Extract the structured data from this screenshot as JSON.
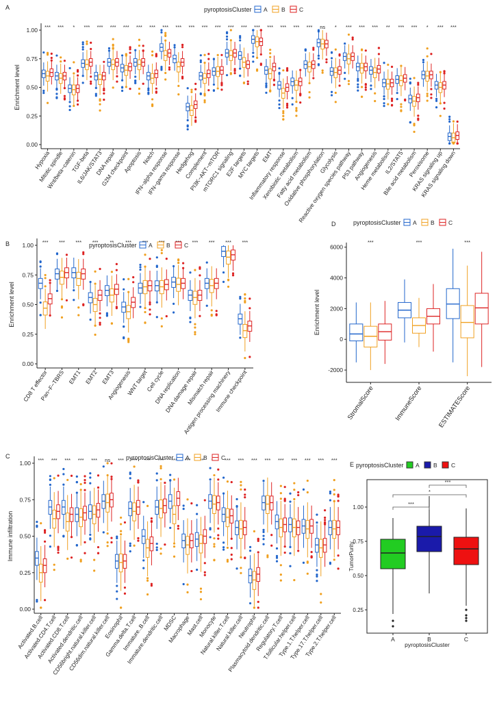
{
  "colors": {
    "A": "#2266cc",
    "B": "#f0a020",
    "C": "#dd2222",
    "E_A": "#22cc22",
    "E_B": "#1a1aaa",
    "E_C": "#ee1111"
  },
  "chart_data": [
    {
      "panel": "A",
      "type": "box",
      "title": "pyroptosisCluster",
      "ylabel": "Enrichment level",
      "legend": {
        "title": "pyroptosisCluster",
        "entries": [
          "A",
          "B",
          "C"
        ]
      },
      "yticks": [
        "0.00",
        "0.25",
        "0.50",
        "0.75",
        "1.00"
      ],
      "ylim": [
        0,
        1
      ],
      "categories": [
        "Hypoxia",
        "Mitotic spindle",
        "Wnt/beta−catenin",
        "TGF-beta",
        "IL6/JAK/STAT3",
        "DNA repair",
        "G2M checkpoint",
        "Apoptosis",
        "Notch",
        "IFN−alpha response",
        "IFN−gama response",
        "Hedgehog",
        "Complement",
        "PI3K−AKT−mTOR",
        "mTORC1 signaling",
        "E2F targets",
        "MYC targets",
        "EMT",
        "Inflammatory response",
        "Xenobiotic metabolism",
        "Fatty acid metabolism",
        "Oxidative phosphorylation",
        "Glycolysis",
        "Reactive oxygen species pathway",
        "P53 pathway",
        "Angiogenesis",
        "Heme metabolism",
        "IL2/STAT5",
        "Bile acid metabolism",
        "Peroxisome",
        "KRAS signaling up",
        "KRAS signaling down"
      ],
      "significance": [
        "***",
        "***",
        "*",
        "***",
        "***",
        "***",
        "***",
        "***",
        "***",
        "***",
        "***",
        "***",
        "***",
        "***",
        "***",
        "***",
        "***",
        "***",
        "***",
        "***",
        "***",
        "ns",
        "*",
        "***",
        "***",
        "***",
        "**",
        "***",
        "***",
        "*",
        "***",
        "***"
      ],
      "medians": [
        [
          0.62,
          0.6,
          0.63
        ],
        [
          0.6,
          0.58,
          0.6
        ],
        [
          0.49,
          0.48,
          0.49
        ],
        [
          0.71,
          0.7,
          0.72
        ],
        [
          0.6,
          0.57,
          0.6
        ],
        [
          0.72,
          0.7,
          0.72
        ],
        [
          0.67,
          0.65,
          0.68
        ],
        [
          0.72,
          0.7,
          0.72
        ],
        [
          0.6,
          0.58,
          0.62
        ],
        [
          0.85,
          0.78,
          0.8
        ],
        [
          0.75,
          0.68,
          0.72
        ],
        [
          0.33,
          0.3,
          0.35
        ],
        [
          0.6,
          0.58,
          0.62
        ],
        [
          0.64,
          0.64,
          0.65
        ],
        [
          0.8,
          0.78,
          0.8
        ],
        [
          0.78,
          0.72,
          0.7
        ],
        [
          0.92,
          0.9,
          0.9
        ],
        [
          0.65,
          0.62,
          0.68
        ],
        [
          0.52,
          0.45,
          0.5
        ],
        [
          0.55,
          0.52,
          0.55
        ],
        [
          0.7,
          0.68,
          0.7
        ],
        [
          0.89,
          0.88,
          0.88
        ],
        [
          0.64,
          0.63,
          0.65
        ],
        [
          0.77,
          0.75,
          0.77
        ],
        [
          0.68,
          0.67,
          0.68
        ],
        [
          0.65,
          0.63,
          0.66
        ],
        [
          0.54,
          0.53,
          0.54
        ],
        [
          0.57,
          0.56,
          0.58
        ],
        [
          0.4,
          0.38,
          0.41
        ],
        [
          0.61,
          0.6,
          0.61
        ],
        [
          0.52,
          0.5,
          0.52
        ],
        [
          0.07,
          0.06,
          0.08
        ]
      ]
    },
    {
      "panel": "B",
      "type": "box",
      "ylabel": "Enrichment level",
      "legend": {
        "title": "pyroptosisCluster",
        "entries": [
          "A",
          "B",
          "C"
        ]
      },
      "yticks": [
        "0.00",
        "0.25",
        "0.50",
        "0.75",
        "1.00"
      ],
      "ylim": [
        0,
        1
      ],
      "categories": [
        "CD8 T effector",
        "Pan−F−TBRS",
        "EMT1",
        "EMT2",
        "EMT3",
        "Angiogenesis",
        "WNT target",
        "Cell cycle",
        "DNA replication",
        "DNA damage repair",
        "Mismatch repair",
        "Antigen processing machinery",
        "Immune checkpoint"
      ],
      "significance": [
        "***",
        "***",
        "***",
        "***",
        "**",
        "***",
        "***",
        "***",
        "***",
        "***",
        "***",
        "***",
        "***"
      ],
      "medians": [
        [
          0.68,
          0.47,
          0.55
        ],
        [
          0.76,
          0.73,
          0.77
        ],
        [
          0.77,
          0.72,
          0.76
        ],
        [
          0.56,
          0.5,
          0.58
        ],
        [
          0.62,
          0.58,
          0.63
        ],
        [
          0.48,
          0.44,
          0.52
        ],
        [
          0.64,
          0.65,
          0.66
        ],
        [
          0.66,
          0.65,
          0.67
        ],
        [
          0.69,
          0.67,
          0.68
        ],
        [
          0.58,
          0.56,
          0.58
        ],
        [
          0.68,
          0.66,
          0.68
        ],
        [
          0.95,
          0.9,
          0.92
        ],
        [
          0.38,
          0.28,
          0.32
        ]
      ]
    },
    {
      "panel": "C",
      "type": "box",
      "ylabel": "Immune infiltration",
      "legend": {
        "title": "pyroptosisCluster",
        "entries": [
          "A",
          "B",
          "C"
        ]
      },
      "yticks": [
        "0.00",
        "0.25",
        "0.50",
        "0.75",
        "1.00"
      ],
      "ylim": [
        0,
        1
      ],
      "categories": [
        "Activated.B.cell",
        "Activated.CD4.T.cell",
        "Activated.CD8.T.cell",
        "Activated.dendritic.cell",
        "CD56bright.natural.killer.cell",
        "CD56dim.natural.killer.cell",
        "Eosinophil",
        "Gamma.delta.T.cell",
        "Immature..B.cell",
        "Immature.dendritic.cell",
        "MDSC",
        "Macrophage",
        "Mast.cell",
        "Monocyte",
        "Natural.killer.T.cell",
        "Natural.killer.cell",
        "Neutrophil",
        "Plasmacytoid.dendritic.cell",
        "Regulatory.T.cell",
        "T.follicular.helper.cell",
        "Type.1.T.helper.cell",
        "Type.17.T.helper.cell",
        "Type.2.T.helper.cell"
      ],
      "significance": [
        "***",
        "***",
        "***",
        "***",
        "***",
        "ns",
        "***",
        "***",
        "***",
        "***",
        "***",
        "***",
        "***",
        "***",
        "***",
        "***",
        "***",
        "***",
        "***",
        "***",
        "***",
        "***",
        "***"
      ],
      "medians": [
        [
          0.35,
          0.25,
          0.3
        ],
        [
          0.7,
          0.62,
          0.67
        ],
        [
          0.7,
          0.6,
          0.65
        ],
        [
          0.65,
          0.63,
          0.66
        ],
        [
          0.67,
          0.65,
          0.68
        ],
        [
          0.74,
          0.73,
          0.75
        ],
        [
          0.33,
          0.32,
          0.33
        ],
        [
          0.69,
          0.67,
          0.7
        ],
        [
          0.5,
          0.42,
          0.45
        ],
        [
          0.7,
          0.69,
          0.71
        ],
        [
          0.74,
          0.65,
          0.76
        ],
        [
          0.47,
          0.44,
          0.47
        ],
        [
          0.48,
          0.45,
          0.5
        ],
        [
          0.74,
          0.72,
          0.73
        ],
        [
          0.65,
          0.63,
          0.64
        ],
        [
          0.56,
          0.55,
          0.56
        ],
        [
          0.23,
          0.2,
          0.24
        ],
        [
          0.73,
          0.72,
          0.73
        ],
        [
          0.6,
          0.56,
          0.58
        ],
        [
          0.58,
          0.56,
          0.56
        ],
        [
          0.57,
          0.55,
          0.57
        ],
        [
          0.44,
          0.42,
          0.44
        ],
        [
          0.56,
          0.55,
          0.56
        ]
      ]
    },
    {
      "panel": "D",
      "type": "box",
      "ylabel": "Enrichment level",
      "legend": {
        "title": "pyroptosisCluster",
        "entries": [
          "A",
          "B",
          "C"
        ]
      },
      "yticks": [
        "-2000",
        "0",
        "2000",
        "4000",
        "6000"
      ],
      "ylim": [
        -2800,
        6300
      ],
      "categories": [
        "StromalScore",
        "ImmuneScore",
        "ESTIMATEScore"
      ],
      "significance": [
        "***",
        "***",
        "***"
      ],
      "stats": [
        [
          {
            "q1": -100,
            "med": 350,
            "q3": 1000,
            "lo": -1500,
            "hi": 2400
          },
          {
            "q1": -500,
            "med": 200,
            "q3": 850,
            "lo": -2000,
            "hi": 2400
          },
          {
            "q1": -50,
            "med": 500,
            "q3": 1000,
            "lo": -1600,
            "hi": 2500
          }
        ],
        [
          {
            "q1": 1400,
            "med": 1900,
            "q3": 2400,
            "lo": -200,
            "hi": 3900
          },
          {
            "q1": 400,
            "med": 900,
            "q3": 1400,
            "lo": -500,
            "hi": 2700
          },
          {
            "q1": 1000,
            "med": 1500,
            "q3": 2000,
            "lo": -800,
            "hi": 3600
          }
        ],
        [
          {
            "q1": 1350,
            "med": 2300,
            "q3": 3300,
            "lo": -1500,
            "hi": 5900
          },
          {
            "q1": 100,
            "med": 1100,
            "q3": 2200,
            "lo": -2400,
            "hi": 4800
          },
          {
            "q1": 1000,
            "med": 2050,
            "q3": 3000,
            "lo": -1800,
            "hi": 5700
          }
        ]
      ]
    },
    {
      "panel": "E",
      "type": "box",
      "ylabel": "TumorPurity",
      "xlabel": "pyroptosisCluster",
      "legend": {
        "title": "pyroptosisCluster",
        "entries": [
          "A",
          "B",
          "C"
        ]
      },
      "yticks": [
        "0.25",
        "0.50",
        "0.75",
        "1.00"
      ],
      "ylim": [
        0.08,
        1.2
      ],
      "categories": [
        "A",
        "B",
        "C"
      ],
      "brackets": [
        {
          "from": "A",
          "to": "B",
          "label": "***"
        },
        {
          "from": "A",
          "to": "C",
          "label": "*"
        },
        {
          "from": "B",
          "to": "C",
          "label": "***"
        }
      ],
      "stats": [
        {
          "q1": 0.55,
          "med": 0.665,
          "q3": 0.765,
          "lo": 0.22,
          "hi": 0.92,
          "out": [
            0.17,
            0.13
          ]
        },
        {
          "q1": 0.675,
          "med": 0.785,
          "q3": 0.86,
          "lo": 0.37,
          "hi": 1.08,
          "out": []
        },
        {
          "q1": 0.58,
          "med": 0.695,
          "q3": 0.78,
          "lo": 0.28,
          "hi": 0.99,
          "out": [
            0.25,
            0.21,
            0.19,
            0.17
          ]
        }
      ]
    }
  ]
}
